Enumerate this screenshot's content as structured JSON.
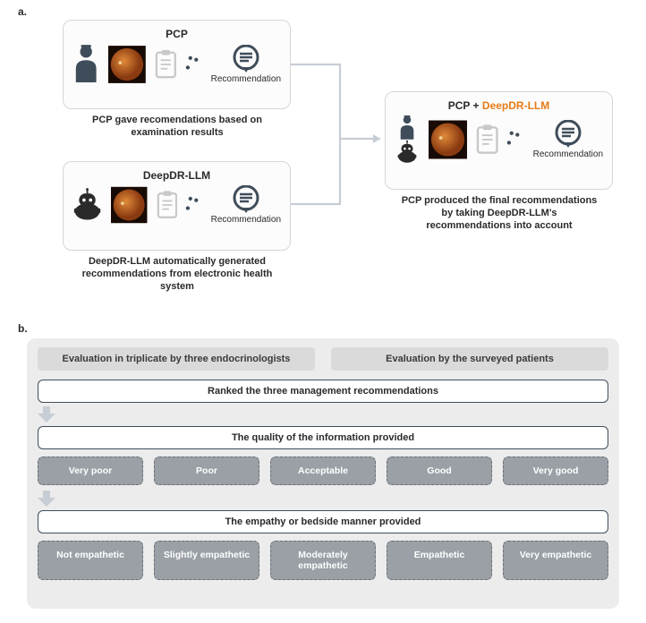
{
  "labels": {
    "a": "a.",
    "b": "b."
  },
  "panelA": {
    "pcp": {
      "title": "PCP",
      "recommendation": "Recommendation",
      "caption": "PCP gave recomendations based on examination results"
    },
    "llm": {
      "title": "DeepDR-LLM",
      "recommendation": "Recommendation",
      "caption": "DeepDR-LLM automatically generated recommendations from electronic health system"
    },
    "combined": {
      "title_prefix": "PCP + ",
      "title_suffix": "DeepDR-LLM",
      "recommendation": "Recommendation",
      "caption": "PCP produced the final recommendations by taking DeepDR-LLM's recommendations into account"
    }
  },
  "panelB": {
    "eval_left": "Evaluation in triplicate by three endocrinologists",
    "eval_right": "Evaluation by the surveyed patients",
    "section1": "Ranked the three management recommendations",
    "section2": "The quality of the information provided",
    "quality_chips": [
      "Very poor",
      "Poor",
      "Acceptable",
      "Good",
      "Very good"
    ],
    "section3": "The empathy or bedside manner provided",
    "empathy_chips": [
      "Not empathetic",
      "Slightly empathetic",
      "Moderately empathetic",
      "Empathetic",
      "Very empathetic"
    ]
  },
  "colors": {
    "personIcon": "#3f4d5a",
    "robotIcon": "#2a2a2a",
    "clipboard": "#c9c9c9",
    "speechIcon": "#3f4d5a",
    "fundusInner": "#c25a1a",
    "fundusOuter": "#1a0a04",
    "arrow": "#c7cdd4"
  }
}
